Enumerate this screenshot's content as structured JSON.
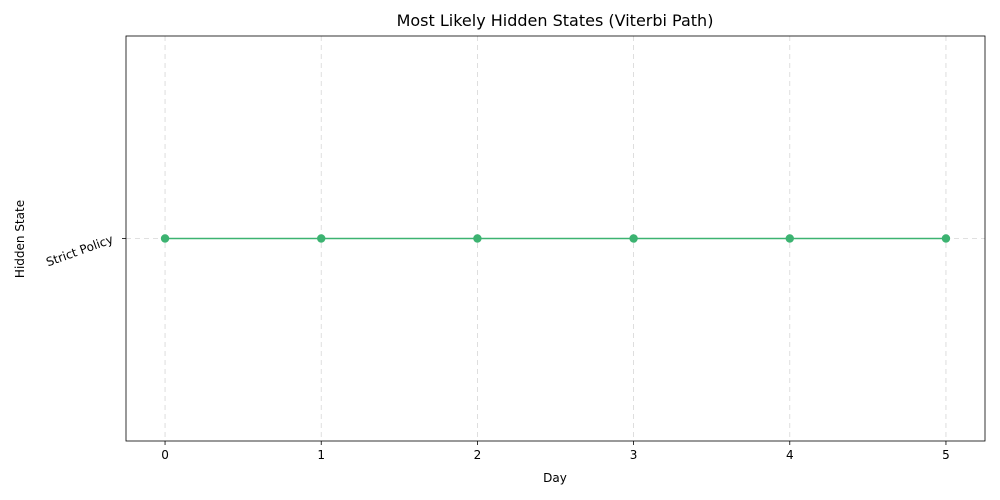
{
  "chart_data": {
    "type": "line",
    "title": "Most Likely Hidden States (Viterbi Path)",
    "xlabel": "Day",
    "ylabel": "Hidden State",
    "x": [
      0,
      1,
      2,
      3,
      4,
      5
    ],
    "y_categories": [
      "Strict Policy"
    ],
    "series": [
      {
        "values": [
          "Strict Policy",
          "Strict Policy",
          "Strict Policy",
          "Strict Policy",
          "Strict Policy",
          "Strict Policy"
        ]
      }
    ],
    "xlim": [
      -0.25,
      5.25
    ],
    "ylim": [
      -0.055,
      0.055
    ],
    "grid": true,
    "marker": "circle",
    "color": "#3cb371"
  }
}
